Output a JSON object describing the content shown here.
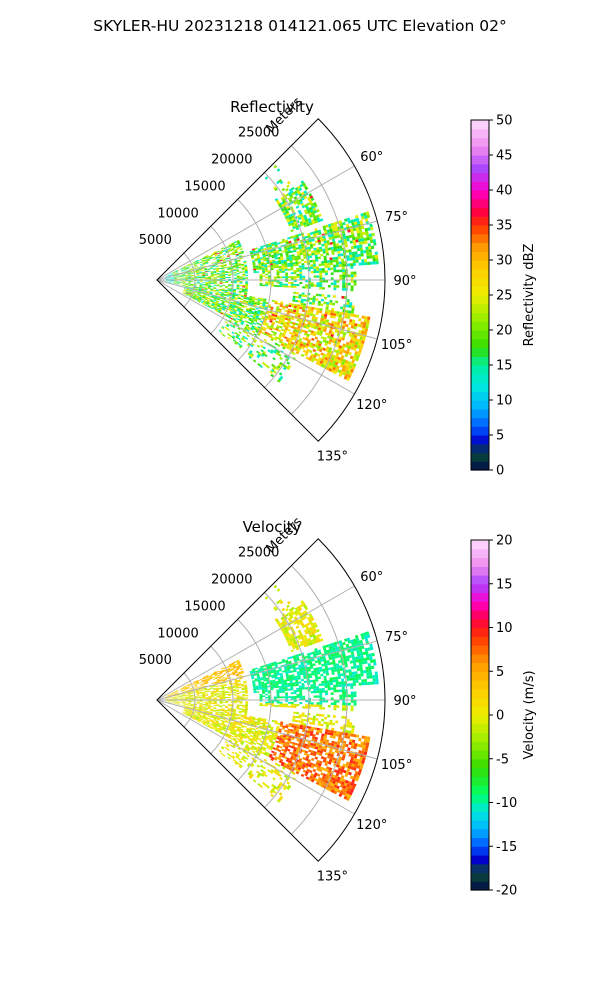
{
  "figure": {
    "title": "SKYLER-HU  20231218  014121.065 UTC Elevation 02°"
  },
  "chart_data": [
    {
      "type": "heatmap",
      "projection": "polar-sector",
      "title": "Reflectivity",
      "range_label": "Meters",
      "range_ticks": [
        5000,
        10000,
        15000,
        20000,
        25000
      ],
      "range_max": 30000,
      "azimuth_range": [
        45,
        135
      ],
      "azimuth_ticks": [
        60,
        75,
        90,
        105,
        120,
        135
      ],
      "azimuth_tick_labels": [
        "60°",
        "75°",
        "90°",
        "105°",
        "120°",
        "135°"
      ],
      "grid": true,
      "colorbar": {
        "label": "Reflectivity dBZ",
        "min": 0,
        "max": 50,
        "ticks": [
          0,
          5,
          10,
          15,
          20,
          25,
          30,
          35,
          40,
          45,
          50
        ],
        "stops": [
          {
            "v": 0,
            "c": "#000d4a"
          },
          {
            "v": 2.5,
            "c": "#0a4a3a"
          },
          {
            "v": 4,
            "c": "#0000c8"
          },
          {
            "v": 6,
            "c": "#0055ff"
          },
          {
            "v": 9,
            "c": "#00b4ff"
          },
          {
            "v": 12,
            "c": "#00e8e0"
          },
          {
            "v": 15,
            "c": "#00f0a0"
          },
          {
            "v": 17.5,
            "c": "#33dd00"
          },
          {
            "v": 21,
            "c": "#88ee00"
          },
          {
            "v": 25,
            "c": "#eeee00"
          },
          {
            "v": 29,
            "c": "#ffcc00"
          },
          {
            "v": 32,
            "c": "#ff9900"
          },
          {
            "v": 35,
            "c": "#ff3300"
          },
          {
            "v": 37,
            "c": "#ff0044"
          },
          {
            "v": 40,
            "c": "#ff00cc"
          },
          {
            "v": 43,
            "c": "#aa44ff"
          },
          {
            "v": 46,
            "c": "#ee88ee"
          },
          {
            "v": 50,
            "c": "#ffddff"
          }
        ]
      }
    },
    {
      "type": "heatmap",
      "projection": "polar-sector",
      "title": "Velocity",
      "range_label": "Meters",
      "range_ticks": [
        5000,
        10000,
        15000,
        20000,
        25000
      ],
      "range_max": 30000,
      "azimuth_range": [
        45,
        135
      ],
      "azimuth_ticks": [
        60,
        75,
        90,
        105,
        120,
        135
      ],
      "azimuth_tick_labels": [
        "60°",
        "75°",
        "90°",
        "105°",
        "120°",
        "135°"
      ],
      "grid": true,
      "colorbar": {
        "label": "Velocity (m/s)",
        "min": -20,
        "max": 20,
        "ticks": [
          -20,
          -15,
          -10,
          -5,
          0,
          5,
          10,
          15,
          20
        ],
        "stops": [
          {
            "v": -20,
            "c": "#000d4a"
          },
          {
            "v": -18,
            "c": "#0a4a3a"
          },
          {
            "v": -16.5,
            "c": "#0000c8"
          },
          {
            "v": -15,
            "c": "#0055ff"
          },
          {
            "v": -13,
            "c": "#00b4ff"
          },
          {
            "v": -11,
            "c": "#00e8e0"
          },
          {
            "v": -9,
            "c": "#00ff66"
          },
          {
            "v": -6,
            "c": "#33dd00"
          },
          {
            "v": -3,
            "c": "#99ee00"
          },
          {
            "v": 0,
            "c": "#eeee00"
          },
          {
            "v": 3,
            "c": "#ffcc00"
          },
          {
            "v": 6,
            "c": "#ff9900"
          },
          {
            "v": 9,
            "c": "#ff3300"
          },
          {
            "v": 11,
            "c": "#ff0044"
          },
          {
            "v": 13,
            "c": "#ff00cc"
          },
          {
            "v": 15,
            "c": "#aa44ff"
          },
          {
            "v": 17,
            "c": "#ee88ee"
          },
          {
            "v": 20,
            "c": "#ffddff"
          }
        ]
      }
    }
  ]
}
